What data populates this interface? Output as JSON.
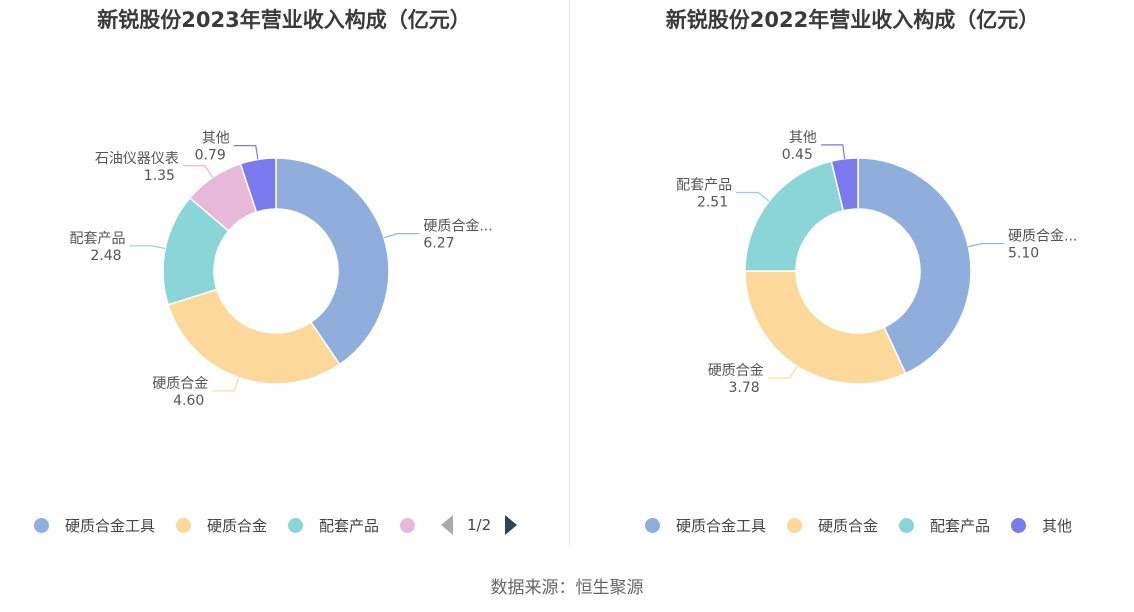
{
  "chart_data": [
    {
      "type": "pie",
      "title": "新锐股份2023年营业收入构成（亿元）",
      "series": [
        {
          "name": "硬质合金工具",
          "label": "硬质合金...",
          "value": 6.27,
          "value_label": "6.27",
          "color": "#8faedb"
        },
        {
          "name": "硬质合金",
          "label": "硬质合金",
          "value": 4.6,
          "value_label": "4.60",
          "color": "#fcd99a"
        },
        {
          "name": "配套产品",
          "label": "配套产品",
          "value": 2.48,
          "value_label": "2.48",
          "color": "#89d5d8"
        },
        {
          "name": "石油仪器仪表",
          "label": "石油仪器仪表",
          "value": 1.35,
          "value_label": "1.35",
          "color": "#e8b8d9"
        },
        {
          "name": "其他",
          "label": "其他",
          "value": 0.79,
          "value_label": "0.79",
          "color": "#7a79ee"
        }
      ],
      "legend": {
        "position": "bottom",
        "items": [
          "硬质合金工具",
          "硬质合金",
          "配套产品",
          ""
        ],
        "pager": "1/2"
      }
    },
    {
      "type": "pie",
      "title": "新锐股份2022年营业收入构成（亿元）",
      "series": [
        {
          "name": "硬质合金工具",
          "label": "硬质合金...",
          "value": 5.1,
          "value_label": "5.10",
          "color": "#8faedb"
        },
        {
          "name": "硬质合金",
          "label": "硬质合金",
          "value": 3.78,
          "value_label": "3.78",
          "color": "#fcd99a"
        },
        {
          "name": "配套产品",
          "label": "配套产品",
          "value": 2.51,
          "value_label": "2.51",
          "color": "#89d5d8"
        },
        {
          "name": "其他",
          "label": "其他",
          "value": 0.45,
          "value_label": "0.45",
          "color": "#7a79ee"
        }
      ],
      "legend": {
        "position": "bottom",
        "items": [
          "硬质合金工具",
          "硬质合金",
          "配套产品",
          "其他"
        ]
      }
    }
  ],
  "footer": {
    "source": "数据来源：恒生聚源"
  }
}
